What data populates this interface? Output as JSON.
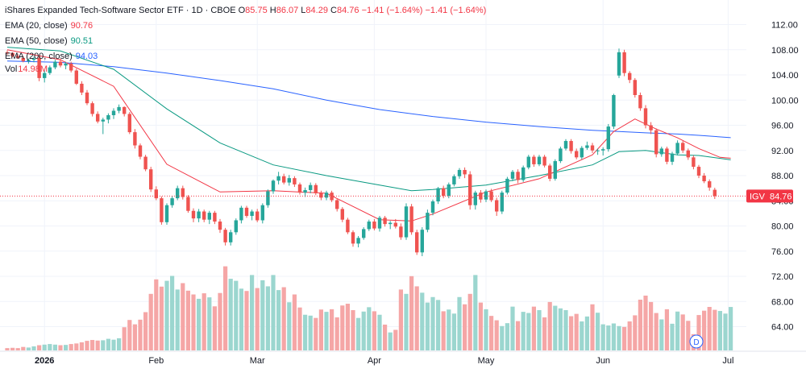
{
  "header": {
    "title": "iShares Expanded Tech-Software Sector ETF · 1D · CBOE",
    "o_label": "O",
    "o": "85.75",
    "h_label": "H",
    "h": "86.07",
    "l_label": "L",
    "l": "84.29",
    "c_label": "C",
    "c": "84.76",
    "change": "−1.41 (−1.64%)",
    "change2": "−1.41 (−1.64%)"
  },
  "indicators": [
    {
      "label": "EMA (20, close)",
      "value": "90.76",
      "color": "#f23645"
    },
    {
      "label": "EMA (50, close)",
      "value": "90.51",
      "color": "#089981"
    },
    {
      "label": "EMA (200, close)",
      "value": "94.03",
      "color": "#2962ff"
    }
  ],
  "volume_legend": {
    "label": "Vol",
    "value": "14.98M"
  },
  "price_tag": {
    "symbol": "IGV",
    "value": "84.76"
  },
  "event_badge": "D",
  "chart_data": {
    "type": "candlestick",
    "title": "iShares Expanded Tech-Software Sector ETF",
    "interval": "1D",
    "exchange": "CBOE",
    "y_ticks": [
      112,
      108,
      104,
      100,
      96,
      92,
      88,
      84,
      80,
      76,
      72,
      68,
      64
    ],
    "y_tick_labels": [
      "112.00",
      "108.00",
      "104.00",
      "100.00",
      "96.00",
      "92.00",
      "88.00",
      "84.00",
      "80.00",
      "76.00",
      "72.00",
      "68.00",
      "64.00"
    ],
    "ylim": [
      61,
      114
    ],
    "x_ticks": [
      {
        "label": "2026",
        "index": 7,
        "bold": true
      },
      {
        "label": "Feb",
        "index": 28
      },
      {
        "label": "Mar",
        "index": 47
      },
      {
        "label": "Apr",
        "index": 69
      },
      {
        "label": "May",
        "index": 90
      },
      {
        "label": "Jun",
        "index": 112
      },
      {
        "label": "Jul",
        "index": 134
      }
    ],
    "last_close": 84.76,
    "candles": [
      [
        107.6,
        107.9,
        107.2,
        107.5
      ],
      [
        107.5,
        107.6,
        106.8,
        107.0
      ],
      [
        107.0,
        107.3,
        106.6,
        106.7
      ],
      [
        106.7,
        107.0,
        106.0,
        106.2
      ],
      [
        106.2,
        106.6,
        105.8,
        106.4
      ],
      [
        106.4,
        106.9,
        106.0,
        106.6
      ],
      [
        106.7,
        107.0,
        103.0,
        103.5
      ],
      [
        103.5,
        104.7,
        102.8,
        104.3
      ],
      [
        104.3,
        105.5,
        104.0,
        105.2
      ],
      [
        105.2,
        106.4,
        104.9,
        106.1
      ],
      [
        106.1,
        106.6,
        105.2,
        105.5
      ],
      [
        105.5,
        106.1,
        104.9,
        105.8
      ],
      [
        105.8,
        106.1,
        104.4,
        104.7
      ],
      [
        104.7,
        105.0,
        102.4,
        102.6
      ],
      [
        102.6,
        103.0,
        100.8,
        101.2
      ],
      [
        101.2,
        101.6,
        99.2,
        99.5
      ],
      [
        99.5,
        99.8,
        97.4,
        97.8
      ],
      [
        97.8,
        98.2,
        96.3,
        96.6
      ],
      [
        96.6,
        97.2,
        94.6,
        96.9
      ],
      [
        96.9,
        97.9,
        96.3,
        97.6
      ],
      [
        97.6,
        98.7,
        97.0,
        98.3
      ],
      [
        98.3,
        99.3,
        97.9,
        98.9
      ],
      [
        98.9,
        99.0,
        97.4,
        97.8
      ],
      [
        97.8,
        98.1,
        94.6,
        94.9
      ],
      [
        94.9,
        95.4,
        92.3,
        92.8
      ],
      [
        92.8,
        93.1,
        90.6,
        91.0
      ],
      [
        91.0,
        91.3,
        88.7,
        89.0
      ],
      [
        89.0,
        89.4,
        85.4,
        85.8
      ],
      [
        85.8,
        86.3,
        84.1,
        84.4
      ],
      [
        84.4,
        84.7,
        80.2,
        80.6
      ],
      [
        80.6,
        83.6,
        80.2,
        83.3
      ],
      [
        83.3,
        84.8,
        82.9,
        84.4
      ],
      [
        84.4,
        86.4,
        84.1,
        86.0
      ],
      [
        86.0,
        86.4,
        84.2,
        84.6
      ],
      [
        84.6,
        84.9,
        82.1,
        82.4
      ],
      [
        82.4,
        82.8,
        80.6,
        81.2
      ],
      [
        81.2,
        82.7,
        80.6,
        82.3
      ],
      [
        82.3,
        82.6,
        80.6,
        81.0
      ],
      [
        81.0,
        82.4,
        80.3,
        82.1
      ],
      [
        82.1,
        82.4,
        80.3,
        80.7
      ],
      [
        80.7,
        81.1,
        78.9,
        79.4
      ],
      [
        79.4,
        79.7,
        76.9,
        77.4
      ],
      [
        77.4,
        79.4,
        76.9,
        79.0
      ],
      [
        79.0,
        81.2,
        78.6,
        80.9
      ],
      [
        80.9,
        83.2,
        80.4,
        82.9
      ],
      [
        82.9,
        83.2,
        81.3,
        81.6
      ],
      [
        81.6,
        82.6,
        80.9,
        82.3
      ],
      [
        82.3,
        82.7,
        80.6,
        80.9
      ],
      [
        80.9,
        83.6,
        80.4,
        83.3
      ],
      [
        83.3,
        85.8,
        82.9,
        85.5
      ],
      [
        85.5,
        87.4,
        85.1,
        87.2
      ],
      [
        87.2,
        88.6,
        86.6,
        87.9
      ],
      [
        87.9,
        88.3,
        86.6,
        86.9
      ],
      [
        86.9,
        88.1,
        86.4,
        87.6
      ],
      [
        87.6,
        87.9,
        86.2,
        86.6
      ],
      [
        86.6,
        86.9,
        85.0,
        85.3
      ],
      [
        85.3,
        86.1,
        84.6,
        85.7
      ],
      [
        85.7,
        86.9,
        85.2,
        86.5
      ],
      [
        86.5,
        86.8,
        84.9,
        85.2
      ],
      [
        85.2,
        85.6,
        84.1,
        84.5
      ],
      [
        84.5,
        85.6,
        84.1,
        85.3
      ],
      [
        85.3,
        85.6,
        83.8,
        84.1
      ],
      [
        84.1,
        84.4,
        82.3,
        82.7
      ],
      [
        82.7,
        83.0,
        80.6,
        81.0
      ],
      [
        81.0,
        81.3,
        78.7,
        79.0
      ],
      [
        79.0,
        79.3,
        76.7,
        77.2
      ],
      [
        77.2,
        78.4,
        76.6,
        78.1
      ],
      [
        78.1,
        79.8,
        77.8,
        79.5
      ],
      [
        79.5,
        81.0,
        79.2,
        80.7
      ],
      [
        80.7,
        81.1,
        79.3,
        79.6
      ],
      [
        79.6,
        81.6,
        79.1,
        81.3
      ],
      [
        81.3,
        81.6,
        79.9,
        80.3
      ],
      [
        80.3,
        80.8,
        79.5,
        80.5
      ],
      [
        80.5,
        81.1,
        79.6,
        79.9
      ],
      [
        79.9,
        80.4,
        77.8,
        78.2
      ],
      [
        78.2,
        83.6,
        77.8,
        83.1
      ],
      [
        83.1,
        83.5,
        78.6,
        79.0
      ],
      [
        79.0,
        79.4,
        75.4,
        75.8
      ],
      [
        75.8,
        79.8,
        75.2,
        79.4
      ],
      [
        79.4,
        82.6,
        79.0,
        82.1
      ],
      [
        82.1,
        84.2,
        81.7,
        83.9
      ],
      [
        83.9,
        86.2,
        83.5,
        86.0
      ],
      [
        86.0,
        86.4,
        84.4,
        84.8
      ],
      [
        84.8,
        86.9,
        84.4,
        86.6
      ],
      [
        86.6,
        88.2,
        86.3,
        87.9
      ],
      [
        87.9,
        89.2,
        87.5,
        88.9
      ],
      [
        88.9,
        89.3,
        87.6,
        88.2
      ],
      [
        88.2,
        88.7,
        82.6,
        83.3
      ],
      [
        83.3,
        85.6,
        82.6,
        85.3
      ],
      [
        85.3,
        85.7,
        83.7,
        84.2
      ],
      [
        84.2,
        85.8,
        83.8,
        85.5
      ],
      [
        85.5,
        85.9,
        83.8,
        84.1
      ],
      [
        84.1,
        84.5,
        81.6,
        82.3
      ],
      [
        82.3,
        85.6,
        81.9,
        85.3
      ],
      [
        85.3,
        87.8,
        85.0,
        87.5
      ],
      [
        87.5,
        88.9,
        87.1,
        88.6
      ],
      [
        88.6,
        89.0,
        86.8,
        87.3
      ],
      [
        87.3,
        89.6,
        87.0,
        89.3
      ],
      [
        89.3,
        91.3,
        89.0,
        91.0
      ],
      [
        91.0,
        91.3,
        89.4,
        89.8
      ],
      [
        89.8,
        91.3,
        89.5,
        91.0
      ],
      [
        91.0,
        91.3,
        89.3,
        89.6
      ],
      [
        89.6,
        89.9,
        87.1,
        87.5
      ],
      [
        87.5,
        90.6,
        87.2,
        90.3
      ],
      [
        90.3,
        92.6,
        90.0,
        92.3
      ],
      [
        92.3,
        93.8,
        92.0,
        93.5
      ],
      [
        93.5,
        93.8,
        91.5,
        91.9
      ],
      [
        91.9,
        92.3,
        90.6,
        90.9
      ],
      [
        90.9,
        92.7,
        90.6,
        92.4
      ],
      [
        92.4,
        93.4,
        92.1,
        92.8
      ],
      [
        92.8,
        93.2,
        91.6,
        92.0
      ],
      [
        92.0,
        92.3,
        91.3,
        92.0
      ],
      [
        92.0,
        92.5,
        91.2,
        92.2
      ],
      [
        92.2,
        96.2,
        91.8,
        95.8
      ],
      [
        95.8,
        101.0,
        95.4,
        100.8
      ],
      [
        103.9,
        108.2,
        103.5,
        107.6
      ],
      [
        107.6,
        108.0,
        103.8,
        104.3
      ],
      [
        104.3,
        104.6,
        102.7,
        103.2
      ],
      [
        103.2,
        103.5,
        100.4,
        100.8
      ],
      [
        100.8,
        101.2,
        98.3,
        98.7
      ],
      [
        98.7,
        99.2,
        95.5,
        96.0
      ],
      [
        96.0,
        96.5,
        94.6,
        95.2
      ],
      [
        95.2,
        95.5,
        90.9,
        91.4
      ],
      [
        91.4,
        92.6,
        91.0,
        92.3
      ],
      [
        92.3,
        92.6,
        89.8,
        90.2
      ],
      [
        90.2,
        91.8,
        89.7,
        91.5
      ],
      [
        91.5,
        93.6,
        91.2,
        93.2
      ],
      [
        93.2,
        93.5,
        91.6,
        92.0
      ],
      [
        92.0,
        92.3,
        90.5,
        90.9
      ],
      [
        90.9,
        91.2,
        89.0,
        89.4
      ],
      [
        89.4,
        89.7,
        87.6,
        88.0
      ],
      [
        88.0,
        88.4,
        86.8,
        87.1
      ],
      [
        87.1,
        87.4,
        85.6,
        86.1
      ],
      [
        85.75,
        86.07,
        84.29,
        84.76
      ]
    ],
    "volume_m": [
      0.8,
      0.9,
      0.8,
      1.2,
      1.0,
      1.4,
      1.8,
      2.0,
      2.2,
      2.0,
      1.8,
      1.9,
      2.2,
      2.4,
      2.8,
      3.3,
      3.6,
      3.4,
      3.5,
      4.0,
      3.7,
      4.2,
      8.0,
      10.5,
      9.0,
      10.6,
      13.2,
      19.5,
      24.5,
      22.0,
      24.0,
      25.7,
      21.0,
      23.2,
      20.6,
      19.3,
      17.8,
      19.7,
      18.3,
      15.2,
      19.8,
      29.0,
      24.7,
      24.0,
      21.3,
      20.5,
      26.0,
      21.5,
      24.2,
      22.1,
      26.0,
      20.8,
      21.8,
      16.6,
      19.3,
      14.8,
      12.3,
      12.0,
      11.2,
      14.1,
      13.3,
      14.2,
      11.4,
      15.5,
      16.1,
      13.9,
      11.2,
      13.4,
      14.9,
      13.5,
      12.3,
      8.9,
      6.2,
      7.1,
      21.0,
      19.5,
      25.6,
      22.1,
      19.9,
      16.5,
      18.4,
      17.4,
      13.5,
      14.1,
      12.7,
      18.4,
      15.9,
      19.5,
      26.0,
      16.5,
      14.2,
      11.9,
      10.4,
      8.4,
      9.4,
      15.1,
      10.1,
      13.3,
      12.9,
      15.1,
      13.9,
      11.4,
      16.7,
      15.4,
      14.5,
      13.9,
      11.8,
      12.6,
      10.0,
      11.7,
      15.9,
      13.0,
      9.0,
      8.6,
      9.3,
      8.4,
      8.1,
      10.0,
      12.1,
      17.5,
      18.9,
      16.7,
      12.9,
      10.7,
      14.2,
      9.2,
      13.4,
      12.4,
      10.2,
      5.6,
      12.2,
      13.7,
      15.0,
      14.0,
      13.6,
      12.7,
      14.98
    ],
    "ema20": [
      [
        0,
        108.0
      ],
      [
        10,
        106.4
      ],
      [
        20,
        102.2
      ],
      [
        30,
        89.8
      ],
      [
        40,
        85.4
      ],
      [
        50,
        85.6
      ],
      [
        60,
        85.2
      ],
      [
        70,
        81.0
      ],
      [
        76,
        80.8
      ],
      [
        80,
        81.9
      ],
      [
        90,
        85.4
      ],
      [
        100,
        87.5
      ],
      [
        110,
        91.3
      ],
      [
        114,
        95.0
      ],
      [
        118,
        97.0
      ],
      [
        122,
        95.4
      ],
      [
        126,
        94.0
      ],
      [
        130,
        92.3
      ],
      [
        134,
        90.9
      ],
      [
        136,
        90.76
      ]
    ],
    "ema50": [
      [
        0,
        108.4
      ],
      [
        10,
        107.8
      ],
      [
        20,
        104.9
      ],
      [
        30,
        98.6
      ],
      [
        40,
        93.2
      ],
      [
        50,
        89.7
      ],
      [
        60,
        88.0
      ],
      [
        70,
        86.5
      ],
      [
        76,
        85.6
      ],
      [
        80,
        85.8
      ],
      [
        90,
        86.5
      ],
      [
        100,
        88.0
      ],
      [
        110,
        89.7
      ],
      [
        115,
        91.8
      ],
      [
        120,
        92.0
      ],
      [
        126,
        91.3
      ],
      [
        130,
        91.2
      ],
      [
        136,
        90.51
      ]
    ],
    "ema200": [
      [
        0,
        106.2
      ],
      [
        10,
        106.0
      ],
      [
        20,
        105.3
      ],
      [
        30,
        104.3
      ],
      [
        40,
        103.1
      ],
      [
        50,
        101.8
      ],
      [
        60,
        100.0
      ],
      [
        70,
        98.5
      ],
      [
        80,
        97.4
      ],
      [
        90,
        96.5
      ],
      [
        100,
        95.8
      ],
      [
        110,
        95.2
      ],
      [
        115,
        95.0
      ],
      [
        120,
        94.8
      ],
      [
        126,
        94.6
      ],
      [
        130,
        94.4
      ],
      [
        136,
        94.03
      ]
    ]
  },
  "colors": {
    "up": "#26a69a",
    "down": "#ef5350",
    "volume_up": "#9bd6cf",
    "volume_down": "#f5a6a6",
    "ema20": "#f23645",
    "ema50": "#089981",
    "ema200": "#2962ff",
    "grid": "#f0f3fa",
    "tag": "#f23645"
  }
}
